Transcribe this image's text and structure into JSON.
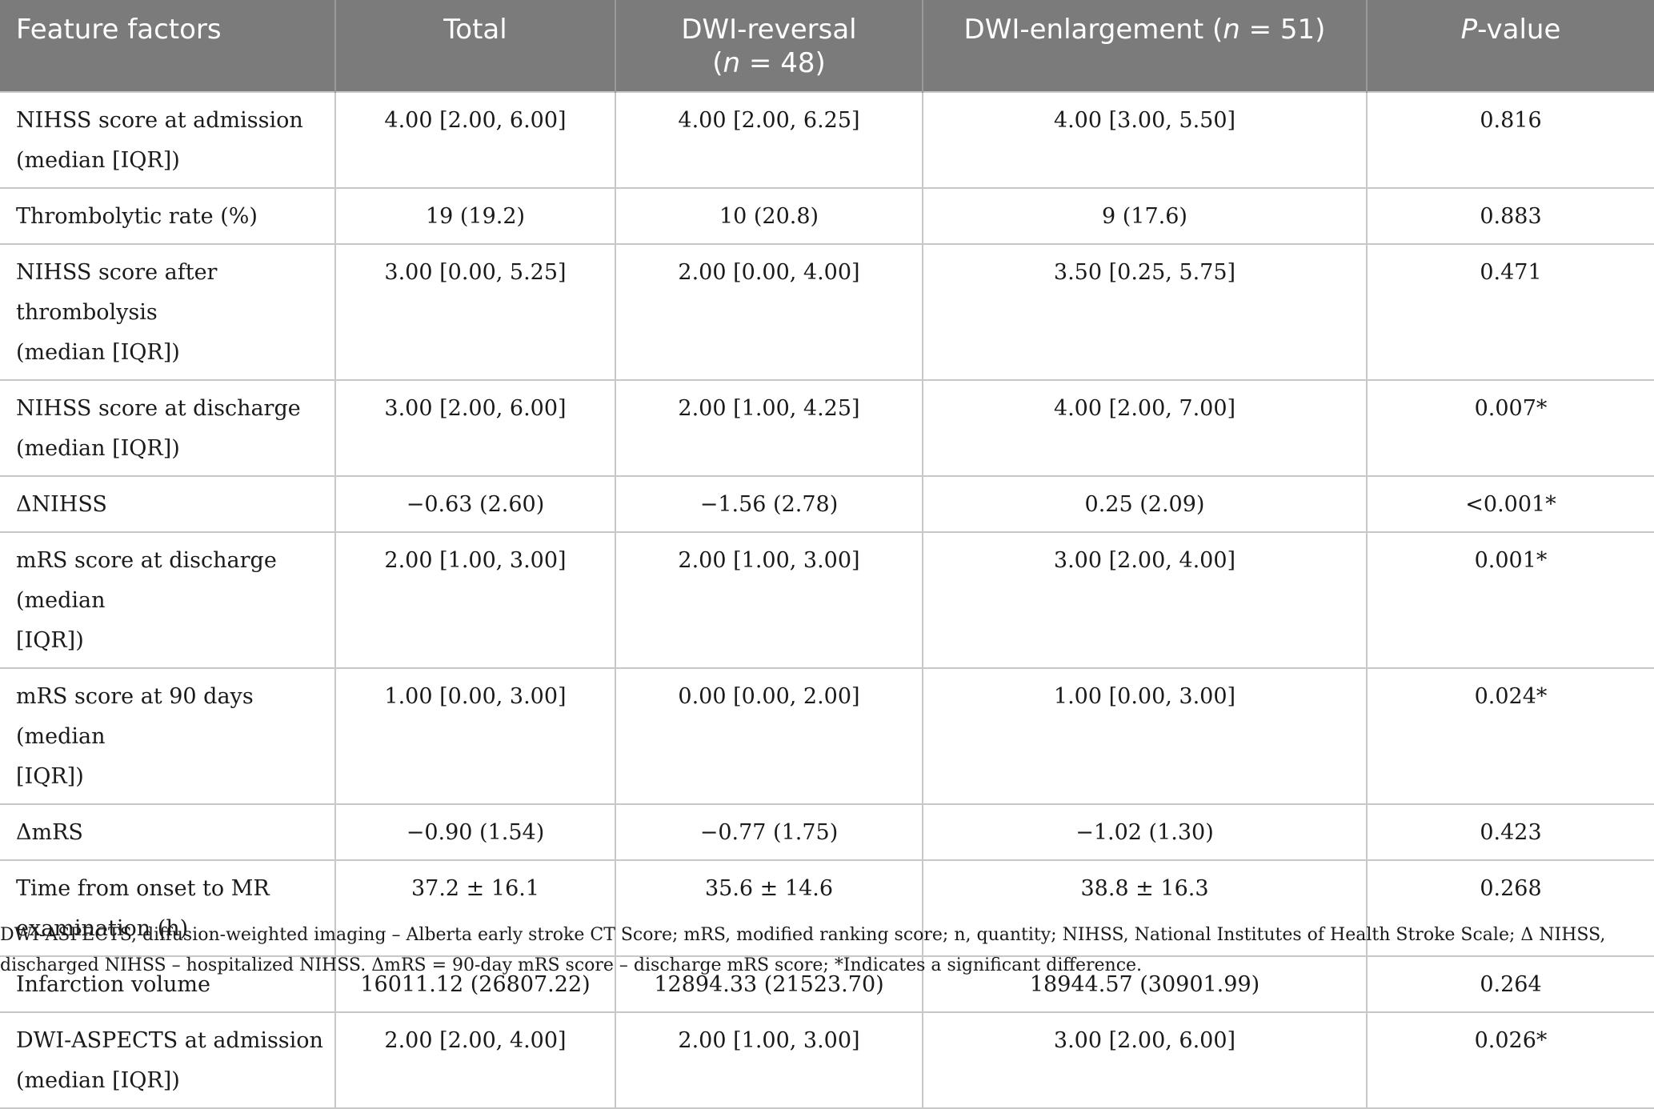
{
  "header": {
    "col1": "Feature factors",
    "col2": "Total",
    "col3_text": "DWI-reversal",
    "col3_n_open": "(",
    "col3_n_var": "n",
    "col3_n_close": " = 48)",
    "col4_text": "DWI-enlargement (",
    "col4_n_var": "n",
    "col4_n_close": " = 51)",
    "col5_var": "P",
    "col5_rest": "-value"
  },
  "rows": [
    {
      "factor_line1": "NIHSS score at admission",
      "factor_line2": "(median [IQR])",
      "total": "4.00 [2.00, 6.00]",
      "reversal": "4.00 [2.00, 6.25]",
      "enlargement": "4.00 [3.00, 5.50]",
      "p": "0.816"
    },
    {
      "factor_line1": "Thrombolytic rate (%)",
      "factor_line2": "",
      "total": "19 (19.2)",
      "reversal": "10 (20.8)",
      "enlargement": "9 (17.6)",
      "p": "0.883"
    },
    {
      "factor_line1": "NIHSS score after thrombolysis",
      "factor_line2": "(median [IQR])",
      "total": "3.00 [0.00, 5.25]",
      "reversal": "2.00 [0.00, 4.00]",
      "enlargement": "3.50 [0.25, 5.75]",
      "p": "0.471"
    },
    {
      "factor_line1": "NIHSS score at discharge",
      "factor_line2": "(median [IQR])",
      "total": "3.00 [2.00, 6.00]",
      "reversal": "2.00 [1.00, 4.25]",
      "enlargement": "4.00 [2.00, 7.00]",
      "p": "0.007*"
    },
    {
      "factor_line1": "ΔNIHSS",
      "factor_line2": "",
      "total": "−0.63 (2.60)",
      "reversal": "−1.56 (2.78)",
      "enlargement": "0.25 (2.09)",
      "p": "<0.001*"
    },
    {
      "factor_line1": "mRS score at discharge (median",
      "factor_line2": "[IQR])",
      "total": "2.00 [1.00, 3.00]",
      "reversal": "2.00 [1.00, 3.00]",
      "enlargement": "3.00 [2.00, 4.00]",
      "p": "0.001*"
    },
    {
      "factor_line1": "mRS score at 90 days (median",
      "factor_line2": "[IQR])",
      "total": "1.00 [0.00, 3.00]",
      "reversal": "0.00 [0.00, 2.00]",
      "enlargement": "1.00 [0.00, 3.00]",
      "p": "0.024*"
    },
    {
      "factor_line1": "ΔmRS",
      "factor_line2": "",
      "total": "−0.90 (1.54)",
      "reversal": "−0.77 (1.75)",
      "enlargement": "−1.02 (1.30)",
      "p": "0.423"
    },
    {
      "factor_line1": "Time from onset to MR",
      "factor_line2": "examination (h)",
      "total": "37.2 ± 16.1",
      "reversal": "35.6 ± 14.6",
      "enlargement": "38.8 ± 16.3",
      "p": "0.268"
    },
    {
      "factor_line1": "Infarction volume",
      "factor_line2": "",
      "total": "16011.12 (26807.22)",
      "reversal": "12894.33 (21523.70)",
      "enlargement": "18944.57 (30901.99)",
      "p": "0.264"
    },
    {
      "factor_line1": "DWI-ASPECTS at admission",
      "factor_line2": "(median [IQR])",
      "total": "2.00 [2.00, 4.00]",
      "reversal": "2.00 [1.00, 3.00]",
      "enlargement": "3.00 [2.00, 6.00]",
      "p": "0.026*"
    }
  ],
  "footnote": {
    "line1": "DWI-ASPECTS, diffusion-weighted imaging – Alberta early stroke CT Score; mRS, modified ranking score; n, quantity; NIHSS, National Institutes of Health Stroke Scale; Δ NIHSS,",
    "line2": "discharged NIHSS – hospitalized NIHSS. ΔmRS = 90-day mRS score – discharge mRS score; *Indicates a significant difference."
  }
}
